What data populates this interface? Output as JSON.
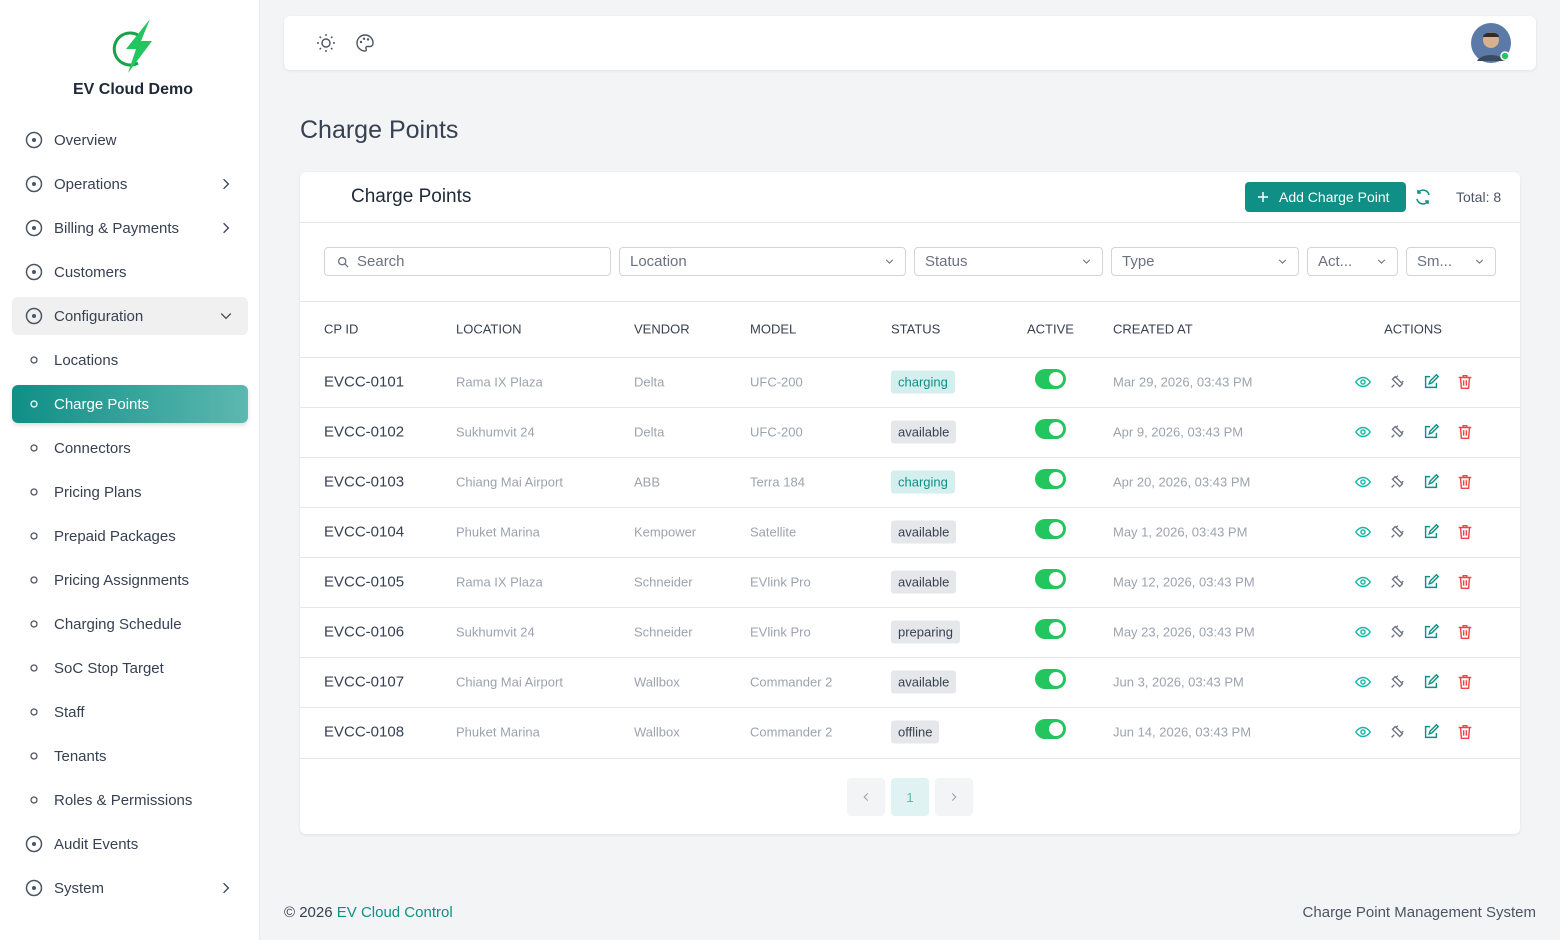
{
  "sidebar": {
    "brand": "EV Cloud Demo",
    "nav": [
      {
        "label": "Overview",
        "icon": "big"
      },
      {
        "label": "Operations",
        "icon": "big",
        "submenu": "collapsed"
      },
      {
        "label": "Billing & Payments",
        "icon": "big",
        "submenu": "collapsed"
      },
      {
        "label": "Customers",
        "icon": "big"
      },
      {
        "label": "Configuration",
        "icon": "big",
        "submenu": "expanded"
      },
      {
        "label": "Locations",
        "icon": "small"
      },
      {
        "label": "Charge Points",
        "icon": "small",
        "active": true
      },
      {
        "label": "Connectors",
        "icon": "small"
      },
      {
        "label": "Pricing Plans",
        "icon": "small"
      },
      {
        "label": "Prepaid Packages",
        "icon": "small"
      },
      {
        "label": "Pricing Assignments",
        "icon": "small"
      },
      {
        "label": "Charging Schedule",
        "icon": "small"
      },
      {
        "label": "SoC Stop Target",
        "icon": "small"
      },
      {
        "label": "Staff",
        "icon": "small"
      },
      {
        "label": "Tenants",
        "icon": "small"
      },
      {
        "label": "Roles & Permissions",
        "icon": "small"
      },
      {
        "label": "Audit Events",
        "icon": "big"
      },
      {
        "label": "System",
        "icon": "big",
        "submenu": "collapsed"
      }
    ]
  },
  "page_title": "Charge Points",
  "card": {
    "title": "Charge Points",
    "add_button": "Add Charge Point",
    "total": "Total: 8",
    "filters": [
      "Search",
      "Location",
      "Status",
      "Type",
      "Act...",
      "Sm..."
    ],
    "columns": [
      "CP ID",
      "LOCATION",
      "VENDOR",
      "MODEL",
      "STATUS",
      "ACTIVE",
      "CREATED AT",
      "ACTIONS"
    ],
    "rows": [
      {
        "cp_id": "EVCC-0101",
        "location": "Rama IX Plaza",
        "vendor": "Delta",
        "model": "UFC-200",
        "status": "charging",
        "active": true,
        "created_at": "Mar 29, 2026, 03:43 PM"
      },
      {
        "cp_id": "EVCC-0102",
        "location": "Sukhumvit 24",
        "vendor": "Delta",
        "model": "UFC-200",
        "status": "available",
        "active": true,
        "created_at": "Apr 9, 2026, 03:43 PM"
      },
      {
        "cp_id": "EVCC-0103",
        "location": "Chiang Mai Airport",
        "vendor": "ABB",
        "model": "Terra 184",
        "status": "charging",
        "active": true,
        "created_at": "Apr 20, 2026, 03:43 PM"
      },
      {
        "cp_id": "EVCC-0104",
        "location": "Phuket Marina",
        "vendor": "Kempower",
        "model": "Satellite",
        "status": "available",
        "active": true,
        "created_at": "May 1, 2026, 03:43 PM"
      },
      {
        "cp_id": "EVCC-0105",
        "location": "Rama IX Plaza",
        "vendor": "Schneider",
        "model": "EVlink Pro",
        "status": "available",
        "active": true,
        "created_at": "May 12, 2026, 03:43 PM"
      },
      {
        "cp_id": "EVCC-0106",
        "location": "Sukhumvit 24",
        "vendor": "Schneider",
        "model": "EVlink Pro",
        "status": "preparing",
        "active": true,
        "created_at": "May 23, 2026, 03:43 PM"
      },
      {
        "cp_id": "EVCC-0107",
        "location": "Chiang Mai Airport",
        "vendor": "Wallbox",
        "model": "Commander 2",
        "status": "available",
        "active": true,
        "created_at": "Jun 3, 2026, 03:43 PM"
      },
      {
        "cp_id": "EVCC-0108",
        "location": "Phuket Marina",
        "vendor": "Wallbox",
        "model": "Commander 2",
        "status": "offline",
        "active": true,
        "created_at": "Jun 14, 2026, 03:43 PM"
      }
    ],
    "pagination": {
      "page": 1
    }
  },
  "footer": {
    "copyright": "© 2026",
    "link": "EV Cloud Control",
    "right": "Charge Point Management System"
  }
}
